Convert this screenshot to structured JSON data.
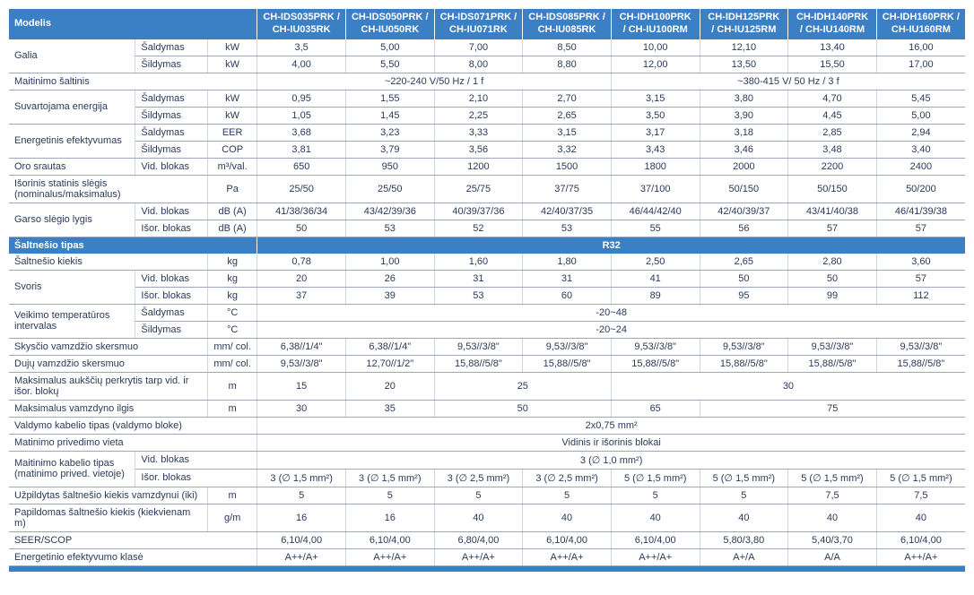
{
  "colors": {
    "header_bg": "#3b7fc4",
    "text": "#2a3a5a",
    "border": "#9aa7bd"
  },
  "fonts": {
    "base_size_pt": 11
  },
  "header": {
    "model_label": "Modelis",
    "models": [
      "CH-IDS035PRK / CH-IU035RK",
      "CH-IDS050PRK / CH-IU050RK",
      "CH-IDS071PRK / CH-IU071RK",
      "CH-IDS085PRK / CH-IU085RK",
      "CH-IDH100PRK / CH-IU100RM",
      "CH-IDH125PRK / CH-IU125RM",
      "CH-IDH140PRK / CH-IU140RM",
      "CH-IDH160PRK / CH-IU160RM"
    ]
  },
  "rows": {
    "r0": {
      "label": "Galia",
      "sub": "Šaldymas",
      "unit": "kW",
      "v": [
        "3,5",
        "5,00",
        "7,00",
        "8,50",
        "10,00",
        "12,10",
        "13,40",
        "16,00"
      ]
    },
    "r1": {
      "sub": "Šildymas",
      "unit": "kW",
      "v": [
        "4,00",
        "5,50",
        "8,00",
        "8,80",
        "12,00",
        "13,50",
        "15,50",
        "17,00"
      ]
    },
    "r2": {
      "label": "Maitinimo šaltinis",
      "span": [
        "~220-240 V/50 Hz / 1 f",
        "~380-415 V/ 50 Hz / 3 f"
      ],
      "cols": [
        4,
        4
      ]
    },
    "r3": {
      "label": "Suvartojama energija",
      "sub": "Šaldymas",
      "unit": "kW",
      "v": [
        "0,95",
        "1,55",
        "2,10",
        "2,70",
        "3,15",
        "3,80",
        "4,70",
        "5,45"
      ]
    },
    "r4": {
      "sub": "Šildymas",
      "unit": "kW",
      "v": [
        "1,05",
        "1,45",
        "2,25",
        "2,65",
        "3,50",
        "3,90",
        "4,45",
        "5,00"
      ]
    },
    "r5": {
      "label": "Energetinis efektyvumas",
      "sub": "Šaldymas",
      "unit": "EER",
      "v": [
        "3,68",
        "3,23",
        "3,33",
        "3,15",
        "3,17",
        "3,18",
        "2,85",
        "2,94"
      ]
    },
    "r6": {
      "sub": "Šildymas",
      "unit": "COP",
      "v": [
        "3,81",
        "3,79",
        "3,56",
        "3,32",
        "3,43",
        "3,46",
        "3,48",
        "3,40"
      ]
    },
    "r7": {
      "label": "Oro srautas",
      "sub": "Vid. blokas",
      "unit": "m³/val.",
      "v": [
        "650",
        "950",
        "1200",
        "1500",
        "1800",
        "2000",
        "2200",
        "2400"
      ]
    },
    "r8": {
      "label": "Išorinis statinis slėgis (nominalus/maksimalus)",
      "unit": "Pa",
      "v": [
        "25/50",
        "25/50",
        "25/75",
        "37/75",
        "37/100",
        "50/150",
        "50/150",
        "50/200"
      ]
    },
    "r9": {
      "label": "Garso slėgio lygis",
      "sub": "Vid. blokas",
      "unit": "dB (A)",
      "v": [
        "41/38/36/34",
        "43/42/39/36",
        "40/39/37/36",
        "42/40/37/35",
        "46/44/42/40",
        "42/40/39/37",
        "43/41/40/38",
        "46/41/39/38"
      ]
    },
    "r10": {
      "sub": "Išor. blokas",
      "unit": "dB (A)",
      "v": [
        "50",
        "53",
        "52",
        "53",
        "55",
        "56",
        "57",
        "57"
      ]
    },
    "section_refrigerant": {
      "label": "Šaltnešio tipas",
      "value": "R32"
    },
    "r11": {
      "label": "Šaltnešio kiekis",
      "unit": "kg",
      "v": [
        "0,78",
        "1,00",
        "1,60",
        "1,80",
        "2,50",
        "2,65",
        "2,80",
        "3,60"
      ]
    },
    "r12": {
      "label": "Svoris",
      "sub": "Vid. blokas",
      "unit": "kg",
      "v": [
        "20",
        "26",
        "31",
        "31",
        "41",
        "50",
        "50",
        "57"
      ]
    },
    "r13": {
      "sub": "Išor. blokas",
      "unit": "kg",
      "v": [
        "37",
        "39",
        "53",
        "60",
        "89",
        "95",
        "99",
        "112"
      ]
    },
    "r14": {
      "label": "Veikimo temperatūros intervalas",
      "sub": "Šaldymas",
      "unit": "°C",
      "full": "-20~48"
    },
    "r15": {
      "sub": "Šildymas",
      "unit": "°C",
      "full": "-20~24"
    },
    "r16": {
      "label": "Skysčio vamzdžio skersmuo",
      "unit": "mm/ col.",
      "v": [
        "6,38//1/4\"",
        "6,38//1/4\"",
        "9,53//3/8\"",
        "9,53//3/8\"",
        "9,53//3/8\"",
        "9,53//3/8\"",
        "9,53//3/8\"",
        "9,53//3/8\""
      ]
    },
    "r17": {
      "label": "Dujų vamzdžio skersmuo",
      "unit": "mm/ col.",
      "v": [
        "9,53//3/8\"",
        "12,70//1/2\"",
        "15,88//5/8\"",
        "15,88//5/8\"",
        "15,88//5/8\"",
        "15,88//5/8\"",
        "15,88//5/8\"",
        "15,88//5/8\""
      ]
    },
    "r18": {
      "label": "Maksimalus aukščių perkrytis tarp vid. ir išor. blokų",
      "unit": "m",
      "span": [
        "15",
        "20",
        "25",
        "30"
      ],
      "cols": [
        1,
        1,
        2,
        4
      ]
    },
    "r19": {
      "label": "Maksimalus vamzdyno ilgis",
      "unit": "m",
      "span": [
        "30",
        "35",
        "50",
        "65",
        "75"
      ],
      "cols": [
        1,
        1,
        2,
        1,
        3
      ]
    },
    "r20": {
      "label": "Valdymo kabelio tipas (valdymo bloke)",
      "full": "2x0,75 mm²"
    },
    "r21": {
      "label": "Matinimo privedimo vieta",
      "full": "Vidinis ir išorinis blokai"
    },
    "r22": {
      "label": "Maitinimo kabelio tipas (matinimo prived. vietoje)",
      "sub": "Vid. blokas",
      "full": "3 (∅ 1,0 mm²)"
    },
    "r23": {
      "sub": "Išor. blokas",
      "v": [
        "3 (∅ 1,5 mm²)",
        "3 (∅ 1,5 mm²)",
        "3 (∅ 2,5 mm²)",
        "3 (∅ 2,5 mm²)",
        "5 (∅ 1,5 mm²)",
        "5 (∅ 1,5 mm²)",
        "5 (∅ 1,5 mm²)",
        "5 (∅ 1,5 mm²)"
      ]
    },
    "r24": {
      "label": "Užpildytas šaltnešio kiekis vamzdynui (iki)",
      "unit": "m",
      "v": [
        "5",
        "5",
        "5",
        "5",
        "5",
        "5",
        "7,5",
        "7,5"
      ]
    },
    "r25": {
      "label": "Papildomas šaltnešio kiekis (kiekvienam m)",
      "unit": "g/m",
      "v": [
        "16",
        "16",
        "40",
        "40",
        "40",
        "40",
        "40",
        "40"
      ]
    },
    "r26": {
      "label": "SEER/SCOP",
      "v": [
        "6,10/4,00",
        "6,10/4,00",
        "6,80/4,00",
        "6,10/4,00",
        "6,10/4,00",
        "5,80/3,80",
        "5,40/3,70",
        "6,10/4,00"
      ]
    },
    "r27": {
      "label": "Energetinio efektyvumo klasė",
      "v": [
        "A++/A+",
        "A++/A+",
        "A++/A+",
        "A++/A+",
        "A++/A+",
        "A+/A",
        "A/A",
        "A++/A+"
      ]
    }
  }
}
